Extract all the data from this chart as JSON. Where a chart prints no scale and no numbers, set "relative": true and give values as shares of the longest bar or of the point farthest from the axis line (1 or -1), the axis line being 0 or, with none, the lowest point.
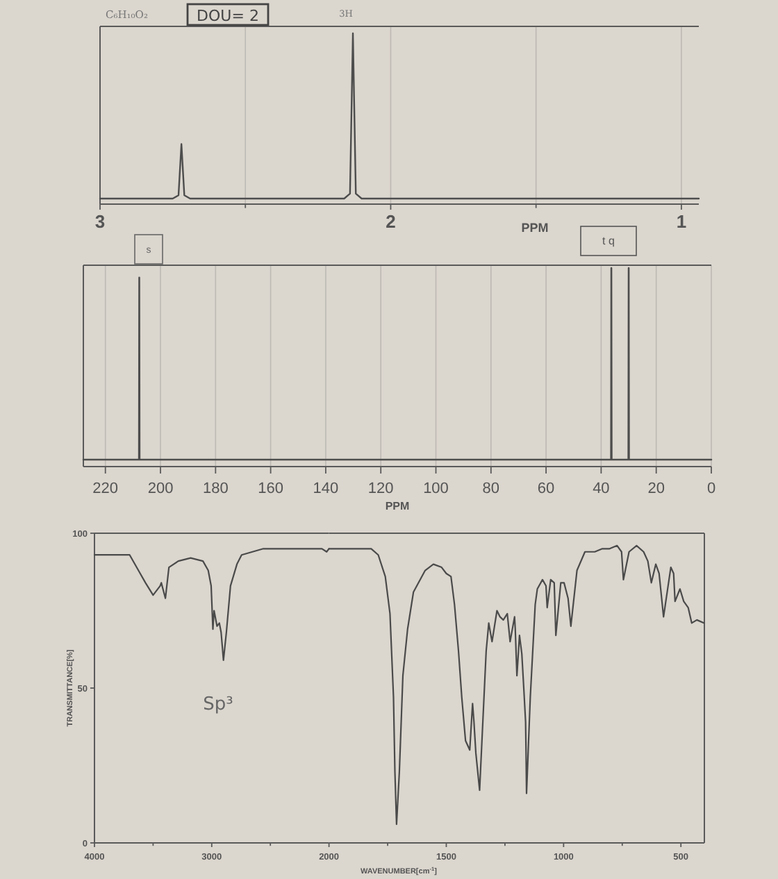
{
  "chart_data": [
    {
      "type": "line",
      "title": "C₆H₁₀O₂",
      "xlabel": "PPM",
      "annotations": [
        "DOU= 2",
        "3H"
      ],
      "relative": true,
      "color": "#4d4d4d",
      "x": [
        3,
        2.75,
        2.73,
        2.72,
        2.71,
        2.69,
        2.16,
        2.14,
        2.13,
        2.12,
        2.1,
        0.94
      ],
      "values": [
        0,
        0,
        0.02,
        0.33,
        0.02,
        0,
        0,
        0.03,
        1,
        0.03,
        0,
        0
      ],
      "xlim": [
        3,
        0.94
      ],
      "xticks": [
        3,
        {
          "value": 2.5,
          "label": null
        },
        2,
        {
          "value": 1.5,
          "label": null
        },
        1
      ],
      "grid": "x"
    },
    {
      "type": "line",
      "xlabel": "PPM",
      "annotations": [
        "s",
        "t q"
      ],
      "relative": true,
      "color": "#4d4d4d",
      "x": [
        228,
        207.8,
        207.7,
        207.6,
        36.4,
        36.3,
        36.2,
        30.1,
        30,
        29.9,
        0
      ],
      "values": [
        0,
        0,
        0.95,
        0,
        0,
        1,
        0,
        0,
        1,
        0,
        0
      ],
      "xlim": [
        228,
        0
      ],
      "xticks": [
        220,
        200,
        180,
        160,
        140,
        120,
        100,
        80,
        60,
        40,
        20,
        0
      ],
      "grid": "x"
    },
    {
      "type": "line",
      "ylabel": "TRANSMITTANCE[%]",
      "annotations": [
        "Sp³"
      ],
      "color": "#4a4a4a",
      "x": [
        4000,
        3700,
        3610,
        3565,
        3500,
        3440,
        3430,
        3395,
        3365,
        3285,
        3180,
        3075,
        3030,
        3005,
        2990,
        2980,
        2955,
        2935,
        2920,
        2900,
        2875,
        2840,
        2785,
        2745,
        2560,
        2395,
        2225,
        2060,
        2020,
        2000
      ],
      "values": [
        93,
        93,
        87,
        84,
        80,
        83,
        84,
        79,
        89,
        91,
        92,
        91,
        88,
        83,
        69,
        75,
        70,
        71,
        68,
        59,
        68,
        83,
        90,
        93,
        95,
        95,
        95,
        95,
        94,
        95
      ],
      "xlim": [
        4000,
        2000
      ],
      "xticks": [
        4000,
        {
          "value": 3500,
          "label": null
        },
        3000,
        {
          "value": 2500,
          "label": null
        },
        2000
      ],
      "ylim": [
        0,
        100
      ],
      "yticks": [
        0,
        50,
        100
      ]
    },
    {
      "type": "line",
      "xlabel": "WAVENUMBER[cm$^{-1}$]",
      "color": "#4a4a4a",
      "x": [
        2000,
        1990,
        1905,
        1820,
        1790,
        1760,
        1740,
        1725,
        1719,
        1712,
        1700,
        1685,
        1665,
        1640,
        1590,
        1555,
        1520,
        1500,
        1480,
        1465,
        1448,
        1434,
        1418,
        1400,
        1388,
        1382,
        1374,
        1358,
        1330,
        1319,
        1305,
        1284,
        1271,
        1257,
        1240,
        1228,
        1209,
        1206,
        1199,
        1188,
        1178,
        1169,
        1162,
        1160,
        1158,
        1142,
        1121,
        1112,
        1090,
        1075,
        1070,
        1055,
        1040,
        1033,
        1012,
        998,
        981,
        969,
        943,
        909,
        867,
        835,
        804,
        772,
        753,
        745,
        721,
        689,
        659,
        641,
        626,
        607,
        593,
        574,
        543,
        531,
        525,
        504,
        488,
        469,
        454,
        432,
        402
      ],
      "values": [
        95,
        95,
        95,
        95,
        93,
        86,
        74,
        47,
        23,
        6,
        23,
        54,
        69,
        81,
        88,
        90,
        89,
        87,
        86,
        77,
        62,
        47,
        33,
        30,
        45,
        39,
        29,
        17,
        62,
        71,
        65,
        75,
        73,
        72,
        74,
        65,
        73,
        69,
        54,
        67,
        61,
        49,
        39,
        29,
        16,
        47,
        77,
        82,
        85,
        83,
        76,
        85,
        84,
        67,
        84,
        84,
        79,
        70,
        88,
        94,
        94,
        95,
        95,
        96,
        94,
        85,
        94,
        96,
        94,
        91,
        84,
        90,
        87,
        73,
        89,
        87,
        78,
        82,
        78,
        76,
        71,
        72,
        71
      ],
      "xlim": [
        2000,
        400
      ],
      "xticks": [
        {
          "value": 1750,
          "label": null
        },
        1500,
        {
          "value": 1250,
          "label": null
        },
        1000,
        {
          "value": 750,
          "label": null
        },
        500
      ],
      "ylim": [
        0,
        100
      ],
      "tick_labels": "x"
    }
  ]
}
